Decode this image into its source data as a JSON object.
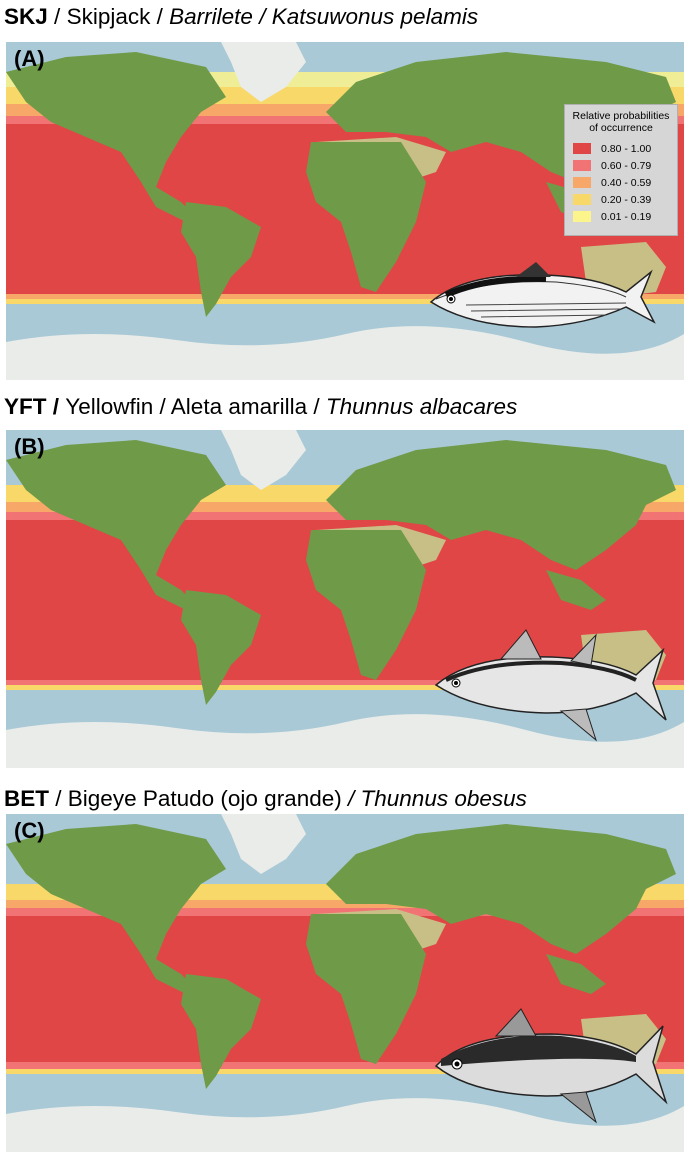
{
  "panels": [
    {
      "code": "SKJ",
      "common_en": "Skipjack",
      "common_es": "Barrilete",
      "scientific": "Katsuwonus pelamis",
      "label": "(A)"
    },
    {
      "code": "YFT",
      "common_en": "Yellowfin",
      "common_es": "Aleta amarilla",
      "scientific": "Thunnus albacares",
      "label": "(B)"
    },
    {
      "code": "BET",
      "common_en": "Bigeye",
      "common_es": "Patudo (ojo grande)",
      "scientific": "Thunnus obesus",
      "label": "(C)"
    }
  ],
  "legend": {
    "title_line1": "Relative probabilities",
    "title_line2": "of occurrence",
    "classes": [
      {
        "label": "0.80 - 1.00",
        "color": "#e04646"
      },
      {
        "label": "0.60 - 0.79",
        "color": "#f27373"
      },
      {
        "label": "0.40 - 0.59",
        "color": "#f7a868"
      },
      {
        "label": "0.20 - 0.39",
        "color": "#f9d86a"
      },
      {
        "label": "0.01 - 0.19",
        "color": "#fbf58c"
      }
    ]
  },
  "colors": {
    "ocean": "#a9c9d6",
    "land": "#6f9a48",
    "ice": "#e9ece8",
    "desert": "#c8bf86"
  }
}
